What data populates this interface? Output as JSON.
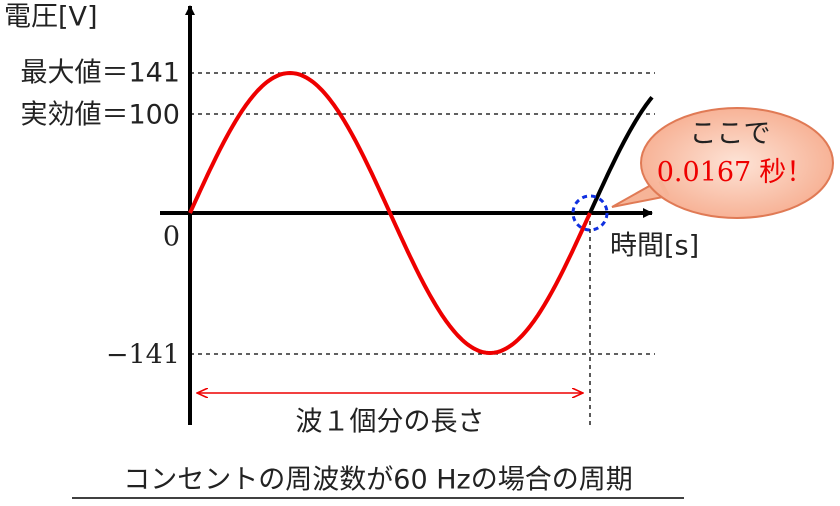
{
  "y_axis_label": "電圧[V]",
  "x_axis_label": "時間[s]",
  "tick_labels": [
    "最大値＝141",
    "実効値＝100",
    "0",
    "−141"
  ],
  "callout": {
    "line1": "ここで",
    "line2_value": "0.0167",
    "line2_unit": "秒！"
  },
  "span_label": "波１個分の長さ",
  "caption": "コンセントの周波数が60 Hzの場合の周期"
}
